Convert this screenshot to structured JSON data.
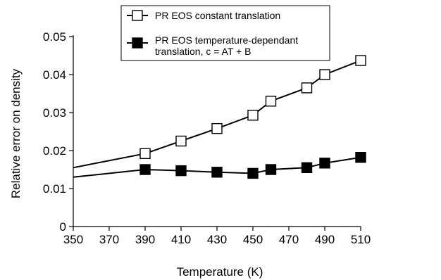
{
  "chart_data": {
    "type": "line",
    "xlabel": "Temperature (K)",
    "ylabel": "Relative error on density",
    "xlim": [
      350,
      510
    ],
    "ylim": [
      0,
      0.05
    ],
    "xticks": [
      "350",
      "370",
      "390",
      "410",
      "430",
      "450",
      "470",
      "490",
      "510"
    ],
    "yticks": [
      "0",
      "0.01",
      "0.02",
      "0.03",
      "0.04",
      "0.05"
    ],
    "grid": false,
    "legend_position": "top-center",
    "series": [
      {
        "name": "PR EOS constant translation",
        "marker": "open-square",
        "color": "#000000",
        "x": [
          350,
          390,
          410,
          430,
          450,
          460,
          480,
          490,
          510
        ],
        "y": [
          0.0155,
          0.0192,
          0.0225,
          0.0258,
          0.0293,
          0.033,
          0.0365,
          0.04,
          0.0437
        ],
        "marker_mask": [
          false,
          true,
          true,
          true,
          true,
          true,
          true,
          true,
          true
        ]
      },
      {
        "name": "PR EOS temperature-dependant translation, c = AT + B",
        "legend_lines": [
          "PR EOS temperature-dependant",
          "translation, c = AT + B"
        ],
        "marker": "filled-square",
        "color": "#000000",
        "x": [
          350,
          390,
          410,
          430,
          450,
          460,
          480,
          490,
          510
        ],
        "y": [
          0.013,
          0.015,
          0.0147,
          0.0143,
          0.014,
          0.015,
          0.0155,
          0.0167,
          0.0182
        ],
        "marker_mask": [
          false,
          true,
          true,
          true,
          true,
          true,
          true,
          true,
          true
        ]
      }
    ]
  }
}
